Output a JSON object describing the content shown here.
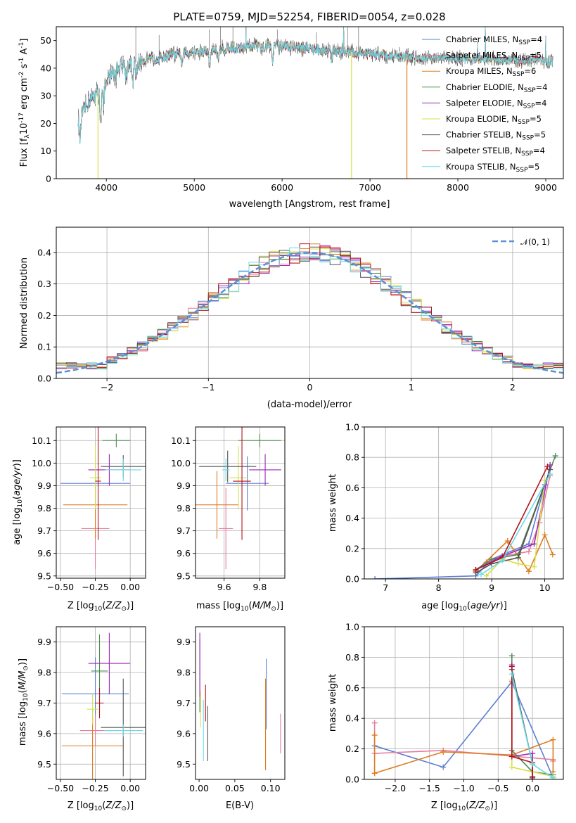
{
  "figure_title": "PLATE=0759, MJD=52254, FIBERID=0054, z=0.028",
  "colors": {
    "Chabrier MILES": "#5b7fd6",
    "Salpeter MILES": "#e87d9e",
    "Kroupa MILES": "#de7c20",
    "Chabrier ELODIE": "#4f8a4f",
    "Salpeter ELODIE": "#9b27b8",
    "Kroupa ELODIE": "#d6e04a",
    "Chabrier STELIB": "#555555",
    "Salpeter STELIB": "#b5121b",
    "Kroupa STELIB": "#6ad9e6"
  },
  "legend_spectrum": [
    {
      "label": "Chabrier MILES, N$_{SSP}$=4",
      "base": "Chabrier MILES, N",
      "sub": "SSP",
      "tail": "=4"
    },
    {
      "label": "Salpeter MILES, N$_{SSP}$=5",
      "base": "Salpeter MILES, N",
      "sub": "SSP",
      "tail": "=5"
    },
    {
      "label": "Kroupa MILES, N$_{SSP}$=6",
      "base": "Kroupa MILES, N",
      "sub": "SSP",
      "tail": "=6"
    },
    {
      "label": "Chabrier ELODIE, N$_{SSP}$=4",
      "base": "Chabrier ELODIE, N",
      "sub": "SSP",
      "tail": "=4"
    },
    {
      "label": "Salpeter ELODIE, N$_{SSP}$=4",
      "base": "Salpeter ELODIE, N",
      "sub": "SSP",
      "tail": "=4"
    },
    {
      "label": "Kroupa ELODIE, N$_{SSP}$=5",
      "base": "Kroupa ELODIE, N",
      "sub": "SSP",
      "tail": "=5"
    },
    {
      "label": "Chabrier STELIB, N$_{SSP}$=5",
      "base": "Chabrier STELIB, N",
      "sub": "SSP",
      "tail": "=5"
    },
    {
      "label": "Salpeter STELIB, N$_{SSP}$=4",
      "base": "Salpeter STELIB, N",
      "sub": "SSP",
      "tail": "=4"
    },
    {
      "label": "Kroupa STELIB, N$_{SSP}$=5",
      "base": "Kroupa STELIB, N",
      "sub": "SSP",
      "tail": "=5"
    }
  ],
  "chart_data": [
    {
      "id": "spectrum",
      "type": "line",
      "xlabel": "wavelength [Angstrom, rest frame]",
      "ylabel": "Flux [f$_\\lambda$10$^{-17}$ erg cm$^{-2}$ s$^{-1}$ A$^{-1}$]",
      "xlim": [
        3430,
        9200
      ],
      "ylim": [
        0,
        55
      ],
      "xticks": [
        4000,
        5000,
        6000,
        7000,
        8000,
        9000
      ],
      "yticks": [
        0,
        10,
        20,
        30,
        40,
        50
      ],
      "continuum_x": [
        3700,
        3800,
        3900,
        4000,
        4100,
        4300,
        4500,
        4800,
        5200,
        5600,
        6000,
        6500,
        7000,
        7500,
        8000,
        8500,
        9050
      ],
      "continuum_y": [
        22,
        28,
        31,
        36,
        40,
        42,
        43,
        45,
        46.5,
        47.5,
        48,
        46.5,
        45,
        44,
        43.5,
        43,
        42.5
      ],
      "artifacts": [
        {
          "series": "Kroupa ELODIE",
          "x": 3905,
          "y_low": 0
        },
        {
          "series": "Kroupa ELODIE",
          "x": 6790,
          "y_low": 0
        },
        {
          "series": "Kroupa MILES",
          "x": 7420,
          "y_low": 0
        }
      ],
      "legend": "upper right"
    },
    {
      "id": "residuals",
      "type": "step",
      "xlabel": "(data-model)/error",
      "ylabel": "Normed distribution",
      "xlim": [
        -2.5,
        2.5
      ],
      "ylim": [
        0,
        0.48
      ],
      "xticks": [
        -2,
        -1,
        0,
        1,
        2
      ],
      "yticks": [
        0.0,
        0.1,
        0.2,
        0.3,
        0.4
      ],
      "grid": true,
      "reference_curve": {
        "label": "$\\mathcal{N}(0,1)$",
        "label_text": "𝒩(0, 1)",
        "mean": 0,
        "sigma": 1,
        "color": "#5b8fd6"
      },
      "legend": "upper right"
    },
    {
      "id": "age-vs-Z",
      "type": "errorbar",
      "xlabel": "Z [log$_{10}$($Z/Z_\\odot$)]",
      "ylabel": "age  [log$_{10}$($age/yr$)]",
      "xlim": [
        -0.53,
        0.11
      ],
      "ylim": [
        9.49,
        10.16
      ],
      "xticks": [
        -0.5,
        -0.25,
        0.0
      ],
      "yticks": [
        9.5,
        9.6,
        9.7,
        9.8,
        9.9,
        10.0,
        10.1
      ],
      "grid": true,
      "points": [
        {
          "series": "Chabrier MILES",
          "x": -0.25,
          "xerr": 0.25,
          "y": 9.91,
          "yerr": 0.12
        },
        {
          "series": "Salpeter MILES",
          "x": -0.25,
          "xerr": 0.1,
          "y": 9.71,
          "yerr": 0.18
        },
        {
          "series": "Kroupa MILES",
          "x": -0.25,
          "xerr": 0.23,
          "y": 9.815,
          "yerr": 0.15
        },
        {
          "series": "Chabrier ELODIE",
          "x": -0.1,
          "xerr": 0.1,
          "y": 10.1,
          "yerr": 0.03
        },
        {
          "series": "Salpeter ELODIE",
          "x": -0.15,
          "xerr": 0.15,
          "y": 9.97,
          "yerr": 0.07
        },
        {
          "series": "Kroupa ELODIE",
          "x": -0.25,
          "xerr": 0.04,
          "y": 9.935,
          "yerr": 0.14
        },
        {
          "series": "Chabrier STELIB",
          "x": -0.05,
          "xerr": 0.16,
          "y": 9.985,
          "yerr": 0.05
        },
        {
          "series": "Salpeter STELIB",
          "x": -0.23,
          "xerr": 0.02,
          "y": 9.92,
          "yerr": 0.26
        },
        {
          "series": "Kroupa STELIB",
          "x": -0.05,
          "xerr": 0.13,
          "y": 9.97,
          "yerr": 0.05
        }
      ]
    },
    {
      "id": "age-vs-mass",
      "type": "errorbar",
      "xlabel": "mass [log$_{10}$($M/M_\\odot$)]",
      "ylabel": "",
      "xlim": [
        9.44,
        9.94
      ],
      "ylim": [
        9.49,
        10.16
      ],
      "xticks": [
        9.6,
        9.8
      ],
      "yticks": [
        9.5,
        9.6,
        9.7,
        9.8,
        9.9,
        10.0,
        10.1
      ],
      "grid": true,
      "points": [
        {
          "series": "Chabrier MILES",
          "x": 9.73,
          "xerr": 0.12,
          "y": 9.91,
          "yerr": 0.12
        },
        {
          "series": "Salpeter MILES",
          "x": 9.61,
          "xerr": 0.04,
          "y": 9.71,
          "yerr": 0.18
        },
        {
          "series": "Kroupa MILES",
          "x": 9.56,
          "xerr": 0.12,
          "y": 9.815,
          "yerr": 0.15
        },
        {
          "series": "Chabrier ELODIE",
          "x": 9.8,
          "xerr": 0.12,
          "y": 10.1,
          "yerr": 0.03
        },
        {
          "series": "Salpeter ELODIE",
          "x": 9.83,
          "xerr": 0.09,
          "y": 9.97,
          "yerr": 0.07
        },
        {
          "series": "Kroupa ELODIE",
          "x": 9.68,
          "xerr": 0.05,
          "y": 9.935,
          "yerr": 0.14
        },
        {
          "series": "Chabrier STELIB",
          "x": 9.62,
          "xerr": 0.16,
          "y": 9.985,
          "yerr": 0.07
        },
        {
          "series": "Salpeter STELIB",
          "x": 9.7,
          "xerr": 0.05,
          "y": 9.92,
          "yerr": 0.26
        },
        {
          "series": "Kroupa STELIB",
          "x": 9.61,
          "xerr": 0.02,
          "y": 9.97,
          "yerr": 0.05
        }
      ]
    },
    {
      "id": "massweight-vs-age",
      "type": "line",
      "xlabel": "age  [log$_{10}$($age/yr$)]",
      "ylabel": "mass weight",
      "xlim": [
        6.6,
        10.35
      ],
      "ylim": [
        0,
        1.0
      ],
      "xticks": [
        7,
        8,
        9,
        10
      ],
      "yticks": [
        0.0,
        0.2,
        0.4,
        0.6,
        0.8,
        1.0
      ],
      "grid": true,
      "series": [
        {
          "name": "Chabrier MILES",
          "x": [
            6.8,
            8.7,
            9.0,
            9.7,
            10.0
          ],
          "y": [
            0.0,
            0.02,
            0.13,
            0.23,
            0.62
          ]
        },
        {
          "name": "Salpeter MILES",
          "x": [
            8.9,
            9.2,
            9.7,
            9.9,
            10.1
          ],
          "y": [
            0.11,
            0.15,
            0.18,
            0.37,
            0.68
          ]
        },
        {
          "name": "Kroupa MILES",
          "x": [
            8.7,
            9.3,
            9.7,
            10.0,
            10.15
          ],
          "y": [
            0.05,
            0.25,
            0.05,
            0.29,
            0.16
          ]
        },
        {
          "name": "Chabrier ELODIE",
          "x": [
            8.7,
            9.0,
            9.5,
            10.2
          ],
          "y": [
            0.06,
            0.13,
            0.16,
            0.81
          ]
        },
        {
          "name": "Salpeter ELODIE",
          "x": [
            8.7,
            9.2,
            9.8,
            10.1
          ],
          "y": [
            0.06,
            0.15,
            0.23,
            0.75
          ]
        },
        {
          "name": "Kroupa ELODIE",
          "x": [
            8.9,
            9.2,
            9.5,
            9.8,
            10.0
          ],
          "y": [
            0.02,
            0.13,
            0.1,
            0.08,
            0.65
          ]
        },
        {
          "name": "Chabrier STELIB",
          "x": [
            8.7,
            9.0,
            9.5,
            10.1
          ],
          "y": [
            0.04,
            0.1,
            0.14,
            0.72
          ]
        },
        {
          "name": "Salpeter STELIB",
          "x": [
            8.7,
            9.2,
            10.05
          ],
          "y": [
            0.06,
            0.14,
            0.74
          ]
        },
        {
          "name": "Kroupa STELIB",
          "x": [
            8.8,
            9.2,
            10.1
          ],
          "y": [
            0.03,
            0.12,
            0.69
          ]
        }
      ]
    },
    {
      "id": "mass-vs-Z",
      "type": "errorbar",
      "xlabel": "Z [log$_{10}$($Z/Z_\\odot$)]",
      "ylabel": "mass [log$_{10}$($M/M_\\odot$)]",
      "xlim": [
        -0.53,
        0.11
      ],
      "ylim": [
        9.45,
        9.95
      ],
      "xticks": [
        -0.5,
        -0.25,
        0.0
      ],
      "yticks": [
        9.5,
        9.6,
        9.7,
        9.8,
        9.9
      ],
      "grid": true,
      "points": [
        {
          "series": "Chabrier MILES",
          "x": -0.25,
          "xerr": 0.24,
          "y": 9.73,
          "yerr": 0.12
        },
        {
          "series": "Salpeter MILES",
          "x": -0.25,
          "xerr": 0.11,
          "y": 9.61,
          "yerr": 0.05
        },
        {
          "series": "Kroupa MILES",
          "x": -0.27,
          "xerr": 0.22,
          "y": 9.56,
          "yerr": 0.12
        },
        {
          "series": "Chabrier ELODIE",
          "x": -0.22,
          "xerr": 0.06,
          "y": 9.805,
          "yerr": 0.12
        },
        {
          "series": "Salpeter ELODIE",
          "x": -0.15,
          "xerr": 0.15,
          "y": 9.83,
          "yerr": 0.1
        },
        {
          "series": "Kroupa ELODIE",
          "x": -0.27,
          "xerr": 0.04,
          "y": 9.68,
          "yerr": 0.05
        },
        {
          "series": "Chabrier STELIB",
          "x": -0.05,
          "xerr": 0.16,
          "y": 9.62,
          "yerr": 0.16
        },
        {
          "series": "Salpeter STELIB",
          "x": -0.22,
          "xerr": 0.03,
          "y": 9.7,
          "yerr": 0.05
        },
        {
          "series": "Kroupa STELIB",
          "x": -0.05,
          "xerr": 0.14,
          "y": 9.61,
          "yerr": 0.02
        }
      ]
    },
    {
      "id": "mass-vs-ebv",
      "type": "errorbar",
      "xlabel": "E(B-V)",
      "ylabel": "",
      "xlim": [
        -0.005,
        0.12
      ],
      "ylim": [
        9.45,
        9.95
      ],
      "xticks": [
        0.0,
        0.05,
        0.1
      ],
      "yticks": [
        9.5,
        9.6,
        9.7,
        9.8,
        9.9
      ],
      "grid": false,
      "points": [
        {
          "series": "Chabrier MILES",
          "x": 0.094,
          "y": 9.73,
          "yerr": 0.115
        },
        {
          "series": "Salpeter MILES",
          "x": 0.114,
          "y": 9.6,
          "yerr": 0.065
        },
        {
          "series": "Kroupa MILES",
          "x": 0.093,
          "y": 9.63,
          "yerr": 0.15
        },
        {
          "series": "Chabrier ELODIE",
          "x": 0.001,
          "y": 9.79,
          "yerr": 0.12
        },
        {
          "series": "Salpeter ELODIE",
          "x": 0.001,
          "y": 9.825,
          "yerr": 0.105
        },
        {
          "series": "Kroupa ELODIE",
          "x": 0.002,
          "y": 9.68,
          "yerr": 0.06
        },
        {
          "series": "Chabrier STELIB",
          "x": 0.012,
          "y": 9.6,
          "yerr": 0.09
        },
        {
          "series": "Salpeter STELIB",
          "x": 0.009,
          "y": 9.7,
          "yerr": 0.06
        },
        {
          "series": "Kroupa STELIB",
          "x": 0.006,
          "y": 9.61,
          "yerr": 0.1
        }
      ]
    },
    {
      "id": "massweight-vs-Z",
      "type": "line",
      "xlabel": "Z [log$_{10}$($Z/Z_\\odot$)]",
      "ylabel": "mass weight",
      "xlim": [
        -2.45,
        0.45
      ],
      "ylim": [
        0,
        1.0
      ],
      "xticks": [
        -2.0,
        -1.5,
        -1.0,
        -0.5,
        0.0
      ],
      "yticks": [
        0.0,
        0.2,
        0.4,
        0.6,
        0.8,
        1.0
      ],
      "grid": true,
      "series": [
        {
          "name": "Chabrier MILES",
          "x": [
            -2.3,
            -1.3,
            -0.3,
            0.3
          ],
          "y": [
            0.22,
            0.08,
            0.64,
            0.01
          ]
        },
        {
          "name": "Salpeter MILES",
          "x": [
            -2.3,
            -2.3,
            -1.3,
            0.3,
            0.3
          ],
          "y": [
            0.37,
            0.17,
            0.19,
            0.13,
            0.12
          ]
        },
        {
          "name": "Kroupa MILES",
          "x": [
            -2.3,
            -2.3,
            -1.3,
            -0.3,
            0.3,
            0.3
          ],
          "y": [
            0.29,
            0.04,
            0.18,
            0.16,
            0.26,
            0.05
          ]
        },
        {
          "name": "Chabrier ELODIE",
          "x": [
            -0.3,
            -0.3,
            0.0,
            0.3
          ],
          "y": [
            0.81,
            0.19,
            0.05,
            0.03
          ]
        },
        {
          "name": "Salpeter ELODIE",
          "x": [
            -0.3,
            -0.3,
            0.0,
            0.0
          ],
          "y": [
            0.75,
            0.15,
            0.17,
            0.0
          ]
        },
        {
          "name": "Kroupa ELODIE",
          "x": [
            -0.3,
            -0.3,
            0.0,
            0.3
          ],
          "y": [
            0.65,
            0.08,
            0.05,
            0.02
          ]
        },
        {
          "name": "Chabrier STELIB",
          "x": [
            -0.3,
            0.0,
            0.0
          ],
          "y": [
            0.72,
            0.1,
            0.02
          ]
        },
        {
          "name": "Salpeter STELIB",
          "x": [
            -0.3,
            -0.3,
            0.0,
            0.0
          ],
          "y": [
            0.74,
            0.15,
            0.11,
            0.01
          ]
        },
        {
          "name": "Kroupa STELIB",
          "x": [
            -0.3,
            0.0,
            0.3
          ],
          "y": [
            0.69,
            0.1,
            0.01
          ]
        }
      ]
    }
  ]
}
